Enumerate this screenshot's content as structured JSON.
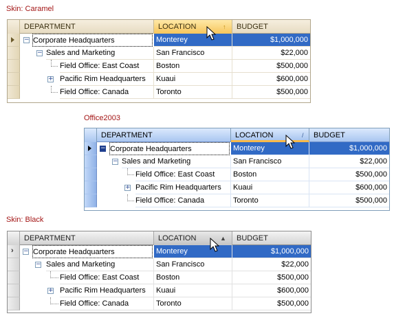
{
  "skins": [
    {
      "label": "Skin: Caramel",
      "columns": [
        "DEPARTMENT",
        "LOCATION",
        "BUDGET"
      ],
      "sort_glyph": "↑",
      "rows": [
        {
          "department": "Corporate Headquarters",
          "location": "Monterey",
          "budget": "$1,000,000",
          "expander": "−"
        },
        {
          "department": "Sales and Marketing",
          "location": "San Francisco",
          "budget": "$22,000",
          "expander": "−"
        },
        {
          "department": "Field Office: East Coast",
          "location": "Boston",
          "budget": "$500,000",
          "expander": ""
        },
        {
          "department": "Pacific Rim Headquarters",
          "location": "Kuaui",
          "budget": "$600,000",
          "expander": "+"
        },
        {
          "department": "Field Office: Canada",
          "location": "Toronto",
          "budget": "$500,000",
          "expander": ""
        }
      ]
    },
    {
      "label": "Office2003",
      "columns": [
        "DEPARTMENT",
        "LOCATION",
        "BUDGET"
      ],
      "sort_glyph": "/",
      "rows": [
        {
          "department": "Corporate Headquarters",
          "location": "Monterey",
          "budget": "$1,000,000",
          "expander": "−"
        },
        {
          "department": "Sales and Marketing",
          "location": "San Francisco",
          "budget": "$22,000",
          "expander": "−"
        },
        {
          "department": "Field Office: East Coast",
          "location": "Boston",
          "budget": "$500,000",
          "expander": ""
        },
        {
          "department": "Pacific Rim Headquarters",
          "location": "Kuaui",
          "budget": "$600,000",
          "expander": "+"
        },
        {
          "department": "Field Office: Canada",
          "location": "Toronto",
          "budget": "$500,000",
          "expander": ""
        }
      ]
    },
    {
      "label": "Skin: Black",
      "columns": [
        "DEPARTMENT",
        "LOCATION",
        "BUDGET"
      ],
      "sort_glyph": "▲",
      "rows": [
        {
          "department": "Corporate Headquarters",
          "location": "Monterey",
          "budget": "$1,000,000",
          "expander": "−"
        },
        {
          "department": "Sales and Marketing",
          "location": "San Francisco",
          "budget": "$22,000",
          "expander": "−"
        },
        {
          "department": "Field Office: East Coast",
          "location": "Boston",
          "budget": "$500,000",
          "expander": ""
        },
        {
          "department": "Pacific Rim Headquarters",
          "location": "Kuaui",
          "budget": "$600,000",
          "expander": "+"
        },
        {
          "department": "Field Office: Canada",
          "location": "Toronto",
          "budget": "$500,000",
          "expander": ""
        }
      ]
    }
  ],
  "colors": {
    "label_red": "#a31515",
    "selection_blue": "#316ac5"
  },
  "icons": {
    "focused_row": "row-indicator-arrow-icon",
    "pointer": "mouse-pointer-icon"
  }
}
